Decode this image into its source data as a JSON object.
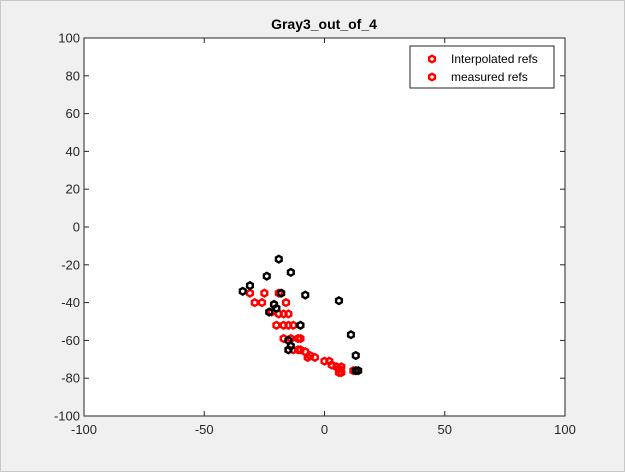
{
  "chart_data": {
    "type": "scatter",
    "title": "Gray3_out_of_4",
    "xlabel": "",
    "ylabel": "",
    "xlim": [
      -100,
      100
    ],
    "ylim": [
      -100,
      100
    ],
    "xticks": [
      -100,
      -50,
      0,
      50,
      100
    ],
    "yticks": [
      -100,
      -80,
      -60,
      -40,
      -20,
      0,
      20,
      40,
      60,
      80,
      100
    ],
    "grid": false,
    "legend_position": "top-right",
    "legend": [
      "Interpolated refs",
      "measured refs"
    ],
    "series": [
      {
        "name": "Interpolated refs",
        "color": "#ff0000",
        "marker": "hexagon-ring",
        "points": [
          [
            -31,
            -35
          ],
          [
            -29,
            -40
          ],
          [
            -26,
            -40
          ],
          [
            -25,
            -35
          ],
          [
            -22,
            -45
          ],
          [
            -21,
            -41
          ],
          [
            -19,
            -35
          ],
          [
            -20,
            -52
          ],
          [
            -19,
            -46
          ],
          [
            -17,
            -46
          ],
          [
            -17,
            -52
          ],
          [
            -17,
            -59
          ],
          [
            -16,
            -40
          ],
          [
            -15,
            -46
          ],
          [
            -15,
            -52
          ],
          [
            -15,
            -65
          ],
          [
            -14,
            -59
          ],
          [
            -13,
            -52
          ],
          [
            -13,
            -65
          ],
          [
            -11,
            -59
          ],
          [
            -11,
            -65
          ],
          [
            -10,
            -59
          ],
          [
            -10,
            -65
          ],
          [
            -8,
            -66
          ],
          [
            -7,
            -69
          ],
          [
            -6,
            -68
          ],
          [
            -4,
            -69
          ],
          [
            0,
            -71
          ],
          [
            2,
            -71
          ],
          [
            3,
            -73
          ],
          [
            5,
            -74
          ],
          [
            6,
            -75
          ],
          [
            6,
            -77
          ],
          [
            7,
            -74
          ],
          [
            7,
            -77
          ],
          [
            12,
            -76
          ]
        ]
      },
      {
        "name": "measured refs",
        "color": "#000000",
        "marker": "hexagon-ring",
        "points": [
          [
            -34,
            -34
          ],
          [
            -31,
            -31
          ],
          [
            -24,
            -26
          ],
          [
            -19,
            -17
          ],
          [
            -14,
            -24
          ],
          [
            -8,
            -36
          ],
          [
            -18,
            -35
          ],
          [
            -20,
            -43
          ],
          [
            -21,
            -41
          ],
          [
            -23,
            -45
          ],
          [
            -10,
            -52
          ],
          [
            -15,
            -60
          ],
          [
            -14,
            -63
          ],
          [
            -15,
            -65
          ],
          [
            6,
            -39
          ],
          [
            11,
            -57
          ],
          [
            13,
            -68
          ],
          [
            13,
            -76
          ],
          [
            14,
            -76
          ]
        ]
      }
    ]
  }
}
